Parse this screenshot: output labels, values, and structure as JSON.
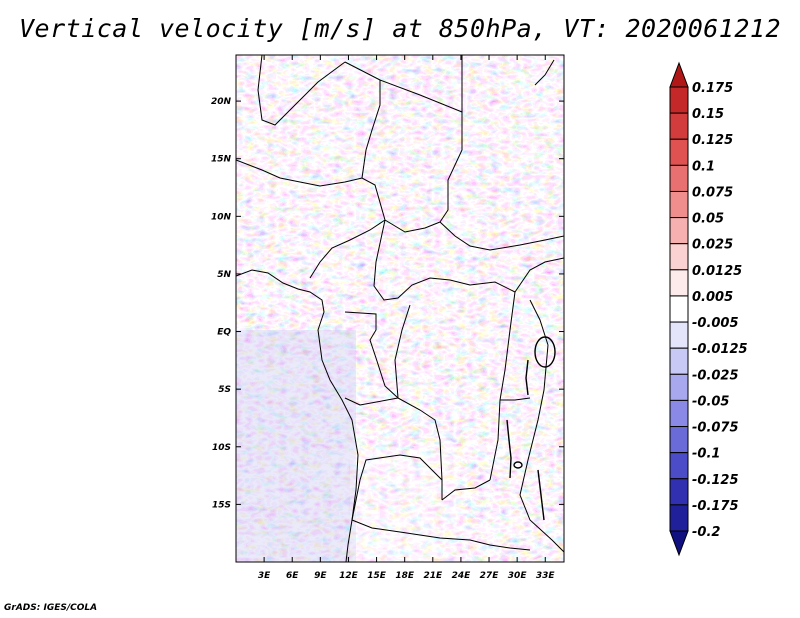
{
  "title": "Vertical velocity [m/s] at 850hPa, VT: 2020061212",
  "credit": "GrADS: IGES/COLA",
  "map": {
    "lon_range": [
      0,
      35
    ],
    "lat_range": [
      -20,
      24
    ],
    "x_ticks": [
      "3E",
      "6E",
      "9E",
      "12E",
      "15E",
      "18E",
      "21E",
      "24E",
      "27E",
      "30E",
      "33E"
    ],
    "y_ticks": [
      "20N",
      "15N",
      "10N",
      "5N",
      "EQ",
      "5S",
      "10S",
      "15S"
    ]
  },
  "colorbar": {
    "levels": [
      "0.175",
      "0.15",
      "0.125",
      "0.1",
      "0.075",
      "0.05",
      "0.025",
      "0.0125",
      "0.005",
      "-0.005",
      "-0.0125",
      "-0.025",
      "-0.05",
      "-0.075",
      "-0.1",
      "-0.125",
      "-0.175",
      "-0.2"
    ],
    "colors": [
      "#b01818",
      "#c52828",
      "#d33c3c",
      "#e05252",
      "#e87070",
      "#f08e8e",
      "#f7b0b0",
      "#fbd2d2",
      "#fdeaea",
      "#ffffff",
      "#e4e4fb",
      "#c9c9f5",
      "#a8a8ee",
      "#8a8ae6",
      "#6a6ad8",
      "#4c4cc8",
      "#3030b0",
      "#20209a",
      "#101080"
    ]
  }
}
